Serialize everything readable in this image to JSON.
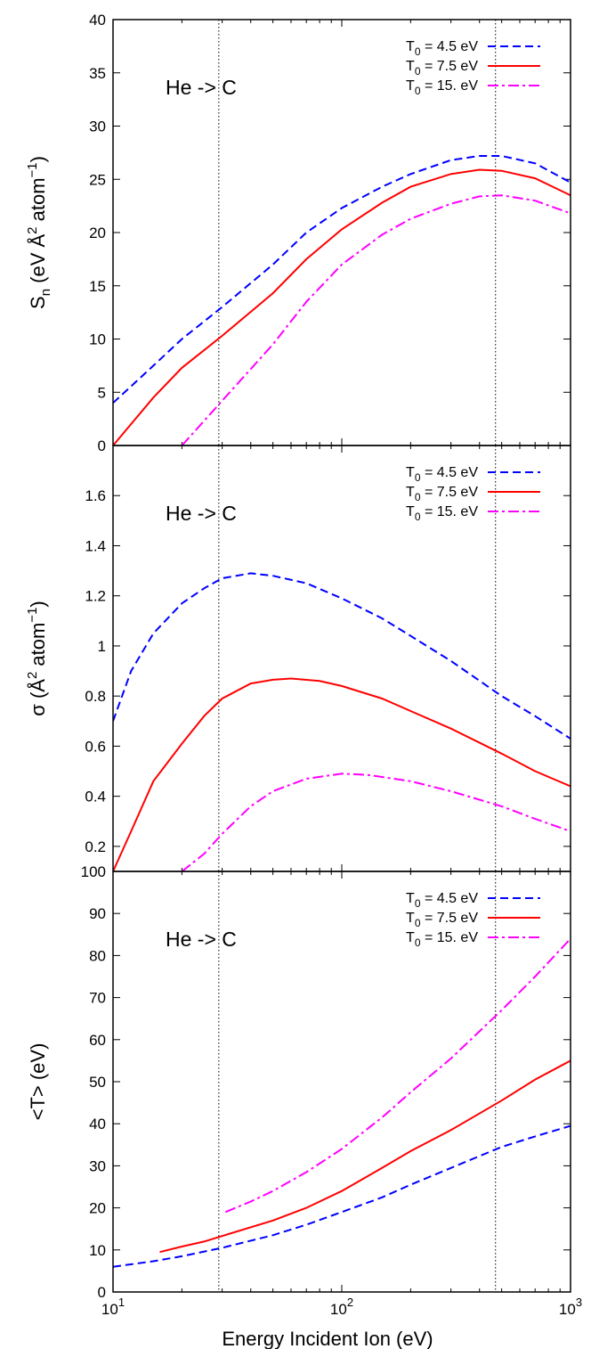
{
  "figure": {
    "xlabel": "Energy Incident Ion  (eV)",
    "xticks": [
      {
        "value": 10,
        "base": "10",
        "exp": "1"
      },
      {
        "value": 100,
        "base": "10",
        "exp": "2"
      },
      {
        "value": 1000,
        "base": "10",
        "exp": "3"
      }
    ],
    "vlines": [
      29,
      470
    ]
  },
  "chart_data": [
    {
      "type": "line",
      "annotation": "He -> C",
      "ylabel": {
        "main": "S",
        "sub": "n",
        "rest": "  (eV Å",
        "sup": "2",
        "rest2": " atom",
        "sup2": "−1",
        "close": ")"
      },
      "xscale": "log",
      "xlim": [
        10,
        1000
      ],
      "ylim": [
        0,
        40
      ],
      "yticks": [
        0,
        5,
        10,
        15,
        20,
        25,
        30,
        35,
        40
      ],
      "legend_position": "top-right",
      "series": [
        {
          "label": {
            "pre": "T",
            "sub": "0",
            "post": " = 4.5 eV"
          },
          "color": "#0000ff",
          "dash": "dashed",
          "x": [
            10,
            15,
            20,
            30,
            50,
            70,
            100,
            150,
            200,
            300,
            400,
            500,
            700,
            1000
          ],
          "y": [
            4.0,
            7.5,
            10.0,
            13.0,
            17.0,
            20.0,
            22.3,
            24.3,
            25.5,
            26.8,
            27.2,
            27.2,
            26.5,
            24.7
          ]
        },
        {
          "label": {
            "pre": "T",
            "sub": "0",
            "post": " = 7.5 eV"
          },
          "color": "#ff0000",
          "dash": "solid",
          "x": [
            10,
            15,
            20,
            30,
            50,
            70,
            100,
            150,
            200,
            300,
            400,
            500,
            700,
            1000
          ],
          "y": [
            0.0,
            4.5,
            7.3,
            10.3,
            14.3,
            17.5,
            20.3,
            22.8,
            24.3,
            25.5,
            25.9,
            25.8,
            25.1,
            23.5
          ]
        },
        {
          "label": {
            "pre": "T",
            "sub": "0",
            "post": " = 15. eV"
          },
          "color": "#ff00ff",
          "dash": "dashdot",
          "x": [
            20,
            30,
            50,
            70,
            100,
            150,
            200,
            300,
            400,
            500,
            700,
            1000
          ],
          "y": [
            0.0,
            4.2,
            9.5,
            13.5,
            17.0,
            19.8,
            21.3,
            22.7,
            23.4,
            23.5,
            23.0,
            21.8
          ]
        }
      ]
    },
    {
      "type": "line",
      "annotation": "He -> C",
      "ylabel": {
        "main": "σ",
        "sub": "",
        "rest": "  (Å",
        "sup": "2",
        "rest2": " atom",
        "sup2": "−1",
        "close": ")"
      },
      "xscale": "log",
      "xlim": [
        10,
        1000
      ],
      "ylim": [
        0.1,
        1.8
      ],
      "yticks": [
        0.2,
        0.4,
        0.6,
        0.8,
        1,
        1.2,
        1.4,
        1.6
      ],
      "legend_position": "top-right",
      "series": [
        {
          "label": {
            "pre": "T",
            "sub": "0",
            "post": " = 4.5 eV"
          },
          "color": "#0000ff",
          "dash": "dashed",
          "x": [
            10,
            12,
            15,
            20,
            25,
            30,
            40,
            50,
            70,
            100,
            150,
            200,
            300,
            500,
            700,
            1000
          ],
          "y": [
            0.7,
            0.9,
            1.05,
            1.17,
            1.23,
            1.27,
            1.29,
            1.28,
            1.25,
            1.19,
            1.11,
            1.04,
            0.94,
            0.8,
            0.72,
            0.63
          ]
        },
        {
          "label": {
            "pre": "T",
            "sub": "0",
            "post": " = 7.5 eV"
          },
          "color": "#ff0000",
          "dash": "solid",
          "x": [
            10,
            12,
            15,
            20,
            25,
            30,
            40,
            50,
            60,
            80,
            100,
            150,
            200,
            300,
            500,
            700,
            1000
          ],
          "y": [
            0.1,
            0.26,
            0.46,
            0.61,
            0.72,
            0.79,
            0.85,
            0.865,
            0.87,
            0.86,
            0.84,
            0.79,
            0.74,
            0.67,
            0.57,
            0.5,
            0.44
          ]
        },
        {
          "label": {
            "pre": "T",
            "sub": "0",
            "post": " = 15. eV"
          },
          "color": "#ff00ff",
          "dash": "dashdot",
          "x": [
            20,
            25,
            30,
            40,
            50,
            70,
            100,
            130,
            200,
            300,
            500,
            700,
            1000
          ],
          "y": [
            0.1,
            0.17,
            0.25,
            0.36,
            0.42,
            0.47,
            0.49,
            0.485,
            0.46,
            0.42,
            0.36,
            0.31,
            0.26
          ]
        }
      ]
    },
    {
      "type": "line",
      "annotation": "He -> C",
      "ylabel": {
        "main": "<T>  (eV)",
        "sub": "",
        "rest": "",
        "sup": "",
        "rest2": "",
        "sup2": "",
        "close": ""
      },
      "xscale": "log",
      "xlim": [
        10,
        1000
      ],
      "ylim": [
        0,
        100
      ],
      "yticks": [
        0,
        10,
        20,
        30,
        40,
        50,
        60,
        70,
        80,
        90,
        100
      ],
      "legend_position": "top-right",
      "series": [
        {
          "label": {
            "pre": "T",
            "sub": "0",
            "post": " = 4.5 eV"
          },
          "color": "#0000ff",
          "dash": "dashed",
          "x": [
            10,
            15,
            20,
            30,
            50,
            70,
            100,
            150,
            200,
            300,
            500,
            700,
            1000
          ],
          "y": [
            6.0,
            7.3,
            8.5,
            10.5,
            13.5,
            16.0,
            19.0,
            22.5,
            25.5,
            29.5,
            34.5,
            37.0,
            39.5
          ]
        },
        {
          "label": {
            "pre": "T",
            "sub": "0",
            "post": " = 7.5 eV"
          },
          "color": "#ff0000",
          "dash": "solid",
          "x": [
            16,
            20,
            25,
            30,
            50,
            70,
            100,
            150,
            200,
            300,
            500,
            700,
            1000
          ],
          "y": [
            9.5,
            10.8,
            12.0,
            13.3,
            17.0,
            20.0,
            24.0,
            29.5,
            33.5,
            38.5,
            45.5,
            50.5,
            55.0
          ]
        },
        {
          "label": {
            "pre": "T",
            "sub": "0",
            "post": " = 15. eV"
          },
          "color": "#ff00ff",
          "dash": "dashdot",
          "x": [
            31,
            40,
            50,
            70,
            100,
            150,
            200,
            300,
            500,
            700,
            1000
          ],
          "y": [
            19.0,
            21.5,
            24.0,
            28.5,
            34.0,
            41.5,
            47.5,
            55.5,
            67.0,
            75.0,
            84.0
          ]
        }
      ]
    }
  ]
}
